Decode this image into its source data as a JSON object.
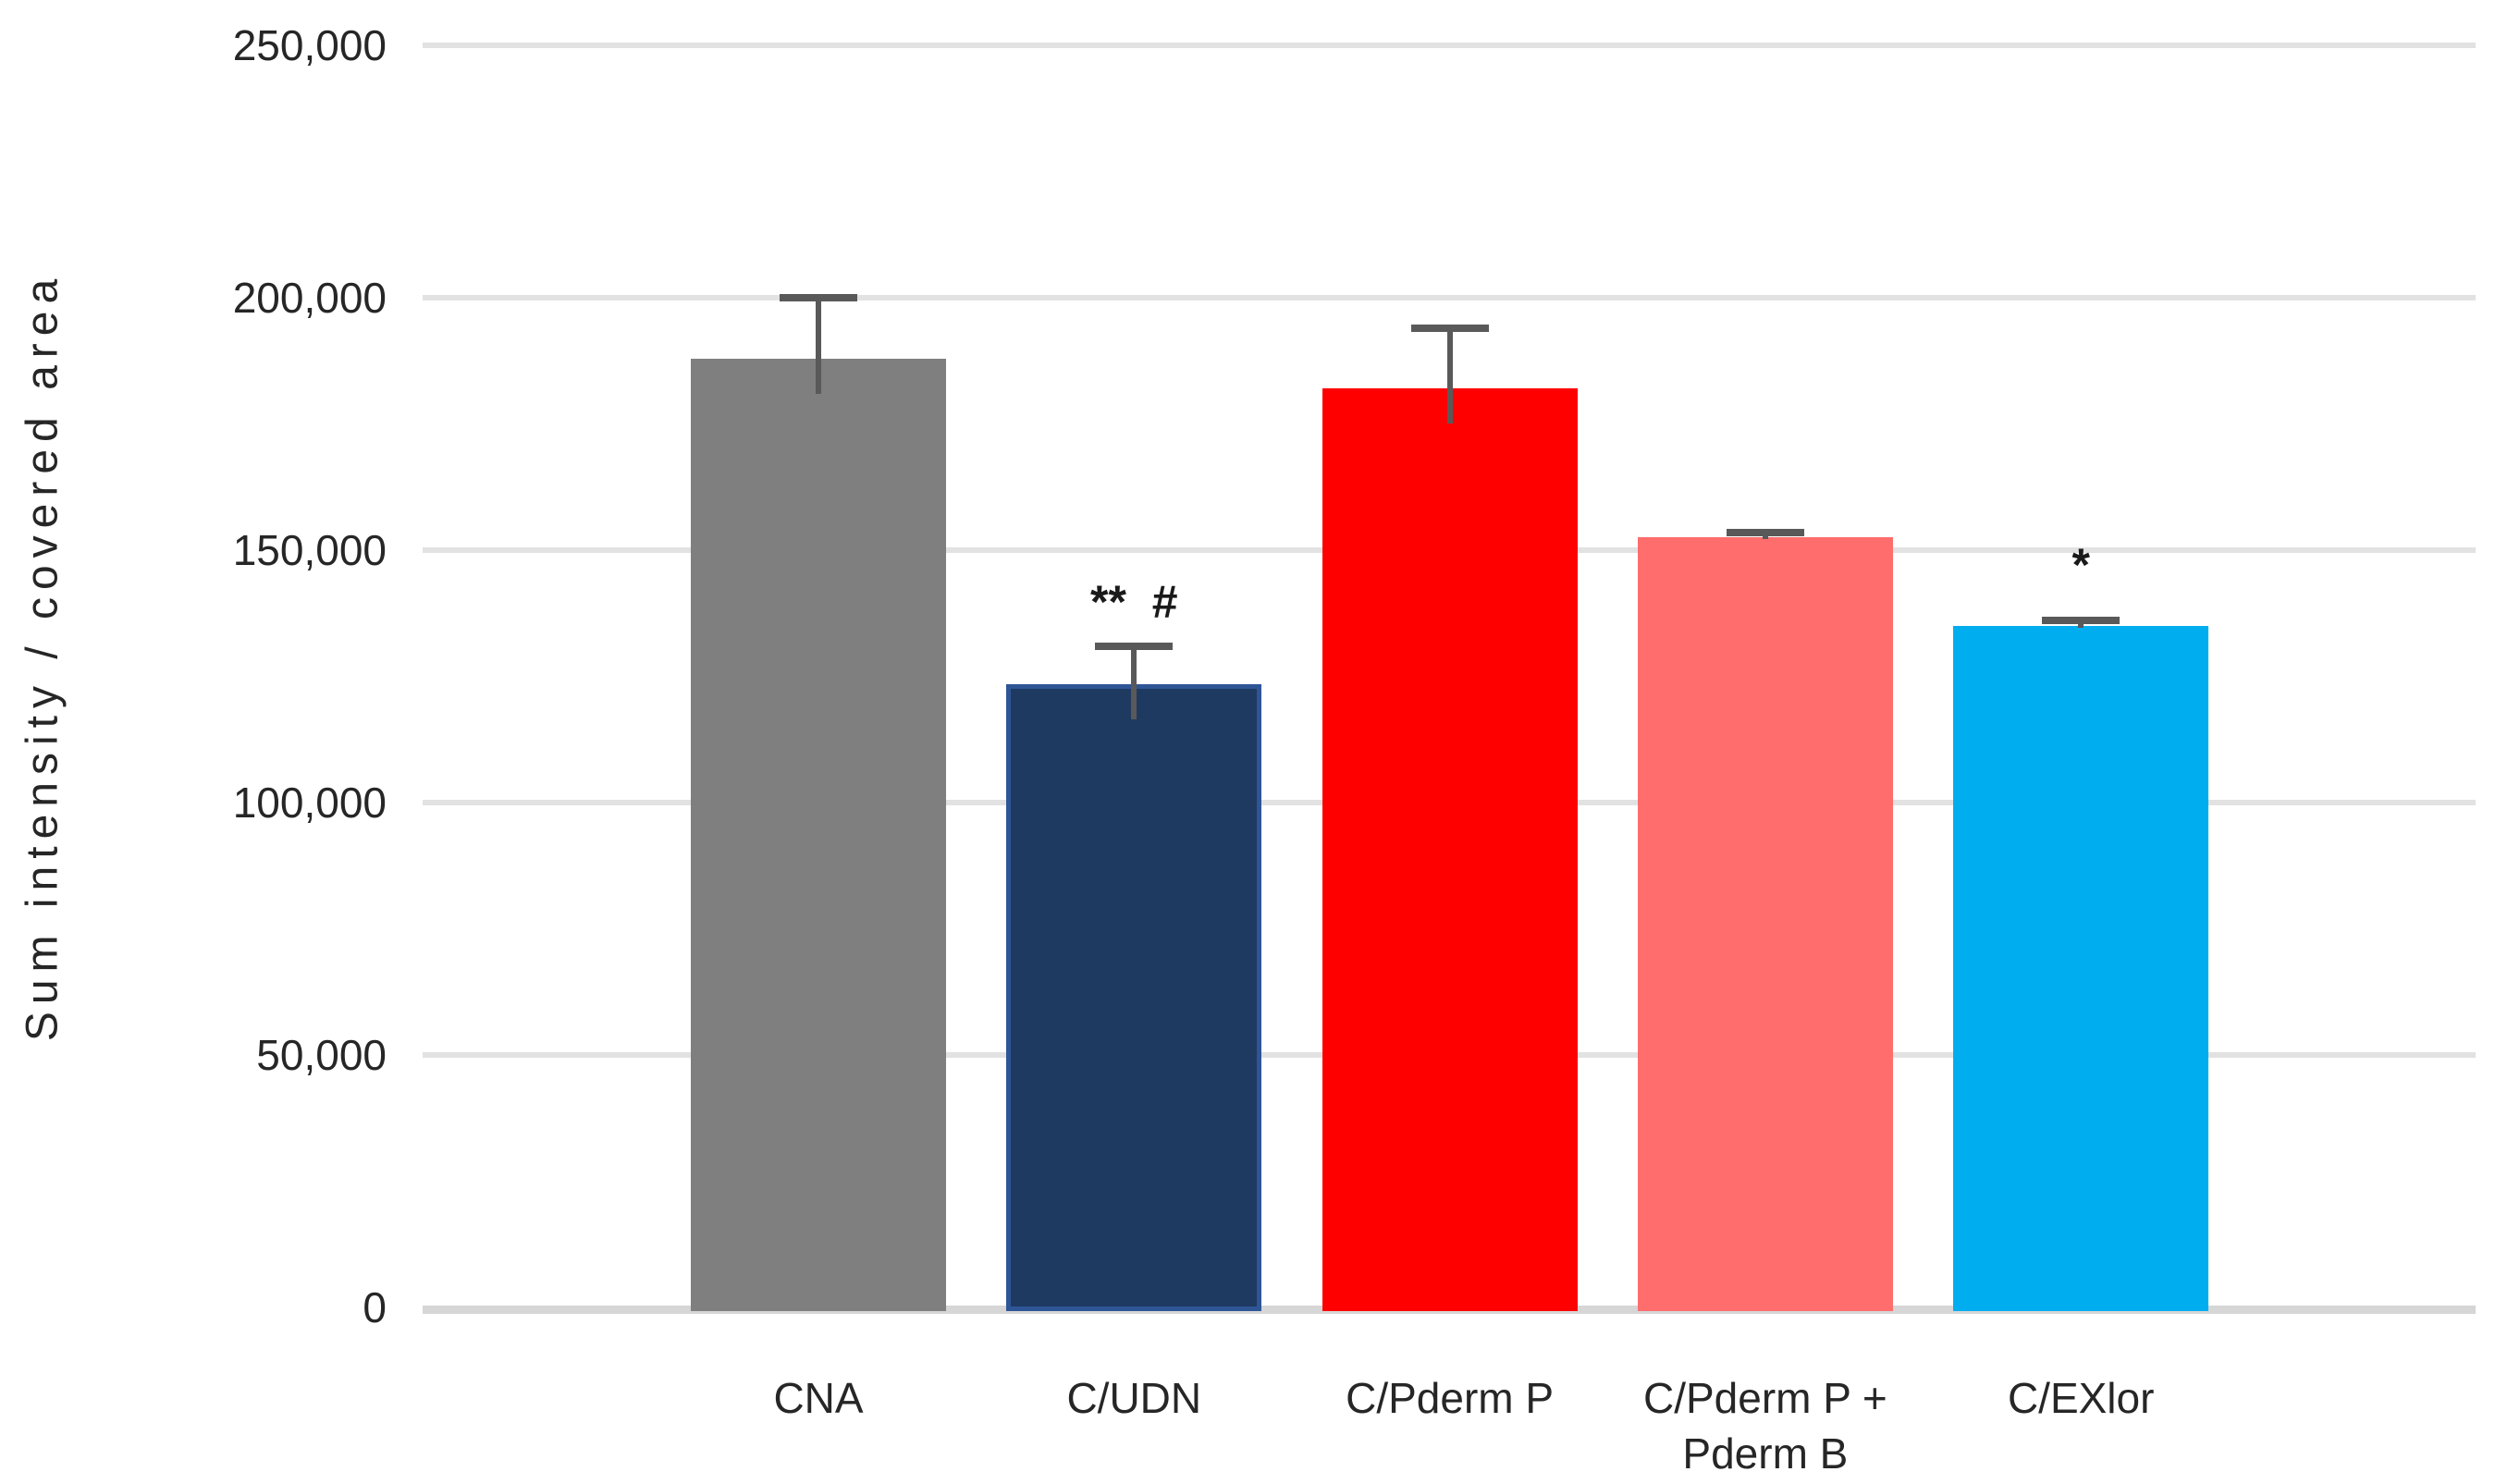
{
  "chart_data": {
    "type": "bar",
    "title": "",
    "xlabel": "",
    "ylabel": "Sum intensity / covered area",
    "categories": [
      "CNA",
      "C/UDN",
      "C/Pderm P",
      "C/Pderm P +\nPderm B",
      "C/EXlor"
    ],
    "values": [
      188000,
      123500,
      182000,
      152500,
      135000
    ],
    "errors_plus": [
      12000,
      7500,
      12000,
      1000,
      1000
    ],
    "bar_colors": [
      "#7F7F7F",
      "#1F3A60",
      "#FF0000",
      "#FF6D6D",
      "#00AEEF"
    ],
    "bar_border_colors": [
      null,
      "#2E5596",
      null,
      null,
      null
    ],
    "ylim": [
      0,
      250000
    ],
    "yticks": [
      0,
      50000,
      100000,
      150000,
      200000,
      250000
    ],
    "ytick_labels": [
      "0",
      "50,000",
      "100,000",
      "150,000",
      "200,000",
      "250,000"
    ],
    "grid": true,
    "legend": "none",
    "annotations": [
      {
        "category_index": 1,
        "text": "**  #"
      },
      {
        "category_index": 4,
        "text": "*"
      }
    ],
    "colors": {
      "gridline": "#E2E2E2",
      "axis_line": "#D6D6D6",
      "error_bar": "#595959",
      "text": "#262626"
    }
  }
}
